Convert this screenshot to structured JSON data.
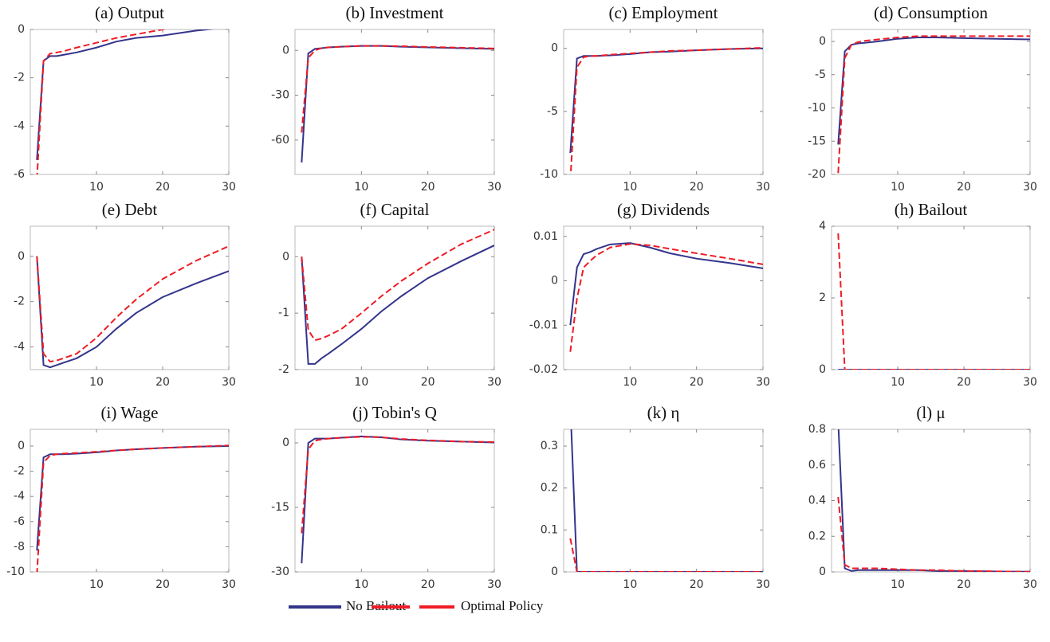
{
  "chart_data": [
    {
      "type": "line",
      "title": "(a) Output",
      "x": [
        1,
        2,
        3,
        4,
        5,
        7,
        10,
        13,
        16,
        20,
        25,
        30
      ],
      "xlim": [
        0,
        30
      ],
      "xticks": [
        10,
        20,
        30
      ],
      "ylim": [
        -6,
        0
      ],
      "yticks": [
        -6,
        -4,
        -2,
        0
      ],
      "series": [
        {
          "name": "No Bailout",
          "color": "#34348c",
          "values": [
            -5.4,
            -1.3,
            -1.1,
            -1.1,
            -1.05,
            -0.95,
            -0.75,
            -0.5,
            -0.35,
            -0.25,
            -0.05,
            0.1
          ]
        },
        {
          "name": "Optimal Policy",
          "color": "#ee1c25",
          "values": [
            -6.2,
            -1.3,
            -1.0,
            -0.95,
            -0.9,
            -0.75,
            -0.55,
            -0.35,
            -0.2,
            0.0,
            0.2,
            0.3
          ]
        }
      ]
    },
    {
      "type": "line",
      "title": "(b) Investment",
      "x": [
        1,
        2,
        3,
        4,
        5,
        7,
        10,
        13,
        16,
        20,
        25,
        30
      ],
      "xlim": [
        0,
        30
      ],
      "xticks": [
        10,
        20,
        30
      ],
      "ylim": [
        -83,
        14
      ],
      "yticks": [
        -60,
        -30,
        0
      ],
      "series": [
        {
          "name": "No Bailout",
          "color": "#34348c",
          "values": [
            -75,
            -2,
            1,
            1.5,
            2,
            2.5,
            3,
            3,
            2.5,
            2,
            1.5,
            1
          ]
        },
        {
          "name": "Optimal Policy",
          "color": "#ee1c25",
          "values": [
            -55,
            -5,
            0,
            1.5,
            2,
            2.5,
            3,
            3,
            2.8,
            2.3,
            1.8,
            1.3
          ]
        }
      ]
    },
    {
      "type": "line",
      "title": "(c) Employment",
      "x": [
        1,
        2,
        3,
        4,
        5,
        7,
        10,
        13,
        16,
        20,
        25,
        30
      ],
      "xlim": [
        0,
        30
      ],
      "xticks": [
        10,
        20,
        30
      ],
      "ylim": [
        -10,
        1.5
      ],
      "yticks": [
        -10,
        -5,
        0
      ],
      "series": [
        {
          "name": "No Bailout",
          "color": "#34348c",
          "values": [
            -8.3,
            -0.8,
            -0.6,
            -0.6,
            -0.6,
            -0.55,
            -0.45,
            -0.3,
            -0.25,
            -0.15,
            -0.05,
            0
          ]
        },
        {
          "name": "Optimal Policy",
          "color": "#ee1c25",
          "values": [
            -10.5,
            -1.5,
            -0.7,
            -0.6,
            -0.6,
            -0.5,
            -0.4,
            -0.3,
            -0.2,
            -0.15,
            -0.05,
            0.05
          ]
        }
      ]
    },
    {
      "type": "line",
      "title": "(d) Consumption",
      "x": [
        1,
        2,
        3,
        4,
        5,
        7,
        10,
        13,
        16,
        20,
        25,
        30
      ],
      "xlim": [
        0,
        30
      ],
      "xticks": [
        10,
        20,
        30
      ],
      "ylim": [
        -20,
        1.8
      ],
      "yticks": [
        -20,
        -15,
        -10,
        -5,
        0
      ],
      "series": [
        {
          "name": "No Bailout",
          "color": "#34348c",
          "values": [
            -15.5,
            -1.5,
            -0.5,
            -0.3,
            -0.2,
            0,
            0.4,
            0.6,
            0.6,
            0.5,
            0.4,
            0.3
          ]
        },
        {
          "name": "Optimal Policy",
          "color": "#ee1c25",
          "values": [
            -19.8,
            -2.5,
            -0.5,
            -0.1,
            0.1,
            0.3,
            0.6,
            0.8,
            0.8,
            0.8,
            0.8,
            0.8
          ]
        }
      ]
    },
    {
      "type": "line",
      "title": "(e) Debt",
      "x": [
        1,
        2,
        3,
        4,
        5,
        7,
        10,
        13,
        16,
        20,
        25,
        30
      ],
      "xlim": [
        0,
        30
      ],
      "xticks": [
        10,
        20,
        30
      ],
      "ylim": [
        -5,
        1.33
      ],
      "yticks": [
        -4,
        -2,
        0
      ],
      "series": [
        {
          "name": "No Bailout",
          "color": "#34348c",
          "values": [
            0,
            -4.8,
            -4.9,
            -4.8,
            -4.7,
            -4.5,
            -4.0,
            -3.2,
            -2.5,
            -1.8,
            -1.2,
            -0.65
          ]
        },
        {
          "name": "Optimal Policy",
          "color": "#ee1c25",
          "values": [
            0,
            -4.3,
            -4.65,
            -4.6,
            -4.5,
            -4.3,
            -3.6,
            -2.7,
            -1.9,
            -1.0,
            -0.2,
            0.45
          ]
        }
      ]
    },
    {
      "type": "line",
      "title": "(f) Capital",
      "x": [
        1,
        2,
        3,
        4,
        5,
        7,
        10,
        13,
        16,
        20,
        25,
        30
      ],
      "xlim": [
        0,
        30
      ],
      "xticks": [
        10,
        20,
        30
      ],
      "ylim": [
        -2,
        0.54
      ],
      "yticks": [
        -2,
        -1,
        0
      ],
      "series": [
        {
          "name": "No Bailout",
          "color": "#34348c",
          "values": [
            0,
            -1.9,
            -1.9,
            -1.8,
            -1.72,
            -1.55,
            -1.28,
            -0.97,
            -0.7,
            -0.38,
            -0.08,
            0.2
          ]
        },
        {
          "name": "Optimal Policy",
          "color": "#ee1c25",
          "values": [
            0,
            -1.3,
            -1.48,
            -1.45,
            -1.4,
            -1.28,
            -1.0,
            -0.7,
            -0.43,
            -0.12,
            0.22,
            0.48
          ]
        }
      ]
    },
    {
      "type": "line",
      "title": "(g) Dividends",
      "x": [
        1,
        2,
        3,
        4,
        5,
        7,
        10,
        13,
        16,
        20,
        25,
        30
      ],
      "xlim": [
        0,
        30
      ],
      "xticks": [
        10,
        20,
        30
      ],
      "ylim": [
        -0.02,
        0.0123
      ],
      "yticks": [
        -0.02,
        -0.01,
        0,
        0.01
      ],
      "series": [
        {
          "name": "No Bailout",
          "color": "#34348c",
          "values": [
            -0.01,
            0.003,
            0.006,
            0.0065,
            0.0072,
            0.0082,
            0.0085,
            0.0075,
            0.0062,
            0.005,
            0.004,
            0.0028
          ]
        },
        {
          "name": "Optimal Policy",
          "color": "#ee1c25",
          "values": [
            -0.016,
            -0.004,
            0.003,
            0.0045,
            0.0058,
            0.0075,
            0.0083,
            0.008,
            0.0072,
            0.0062,
            0.005,
            0.0037
          ]
        }
      ]
    },
    {
      "type": "line",
      "title": "(h) Bailout",
      "x": [
        1,
        2,
        3,
        4,
        5,
        7,
        10,
        13,
        16,
        20,
        25,
        30
      ],
      "xlim": [
        0,
        30
      ],
      "xticks": [
        10,
        20,
        30
      ],
      "ylim": [
        0,
        4
      ],
      "yticks": [
        0,
        2,
        4
      ],
      "series": [
        {
          "name": "No Bailout",
          "color": "#34348c",
          "values": [
            0,
            0,
            0,
            0,
            0,
            0,
            0,
            0,
            0,
            0,
            0,
            0
          ]
        },
        {
          "name": "Optimal Policy",
          "color": "#ee1c25",
          "values": [
            3.8,
            0,
            0,
            0,
            0,
            0,
            0,
            0,
            0,
            0,
            0,
            0
          ]
        }
      ]
    },
    {
      "type": "line",
      "title": "(i) Wage",
      "x": [
        1,
        2,
        3,
        4,
        5,
        7,
        10,
        13,
        16,
        20,
        25,
        30
      ],
      "xlim": [
        0,
        30
      ],
      "xticks": [
        10,
        20,
        30
      ],
      "ylim": [
        -10,
        1.33
      ],
      "yticks": [
        -10,
        -8,
        -6,
        -4,
        -2,
        0
      ],
      "series": [
        {
          "name": "No Bailout",
          "color": "#34348c",
          "values": [
            -8.3,
            -0.9,
            -0.65,
            -0.65,
            -0.65,
            -0.6,
            -0.5,
            -0.35,
            -0.25,
            -0.15,
            -0.05,
            0
          ]
        },
        {
          "name": "Optimal Policy",
          "color": "#ee1c25",
          "values": [
            -10.2,
            -1.3,
            -0.75,
            -0.65,
            -0.6,
            -0.55,
            -0.45,
            -0.35,
            -0.25,
            -0.15,
            -0.05,
            0.05
          ]
        }
      ]
    },
    {
      "type": "line",
      "title": "(j) Tobin's Q",
      "x": [
        1,
        2,
        3,
        4,
        5,
        7,
        10,
        13,
        16,
        20,
        25,
        30
      ],
      "xlim": [
        0,
        30
      ],
      "xticks": [
        10,
        20,
        30
      ],
      "ylim": [
        -30,
        3.15
      ],
      "yticks": [
        -30,
        -15,
        0
      ],
      "series": [
        {
          "name": "No Bailout",
          "color": "#34348c",
          "values": [
            -28,
            0,
            1,
            1,
            1,
            1.2,
            1.5,
            1.3,
            0.8,
            0.5,
            0.3,
            0.1
          ]
        },
        {
          "name": "Optimal Policy",
          "color": "#ee1c25",
          "values": [
            -21,
            -1.5,
            0.5,
            0.8,
            1,
            1.2,
            1.4,
            1.3,
            0.9,
            0.6,
            0.3,
            0.2
          ]
        }
      ]
    },
    {
      "type": "line",
      "title": "(k) η",
      "x": [
        1,
        2,
        3,
        4,
        5,
        7,
        10,
        13,
        16,
        20,
        25,
        30
      ],
      "xlim": [
        0,
        30
      ],
      "xticks": [
        10,
        20,
        30
      ],
      "ylim": [
        0,
        0.34
      ],
      "yticks": [
        0,
        0.1,
        0.2,
        0.3
      ],
      "series": [
        {
          "name": "No Bailout",
          "color": "#34348c",
          "values": [
            0.4,
            0,
            0,
            0,
            0,
            0,
            0,
            0,
            0,
            0,
            0,
            0
          ]
        },
        {
          "name": "Optimal Policy",
          "color": "#ee1c25",
          "values": [
            0.08,
            0,
            0,
            0,
            0,
            0,
            0,
            0,
            0,
            0,
            0,
            0
          ]
        }
      ]
    },
    {
      "type": "line",
      "title": "(l) μ",
      "x": [
        1,
        2,
        3,
        4,
        5,
        7,
        10,
        13,
        16,
        20,
        25,
        30
      ],
      "xlim": [
        0,
        30
      ],
      "xticks": [
        10,
        20,
        30
      ],
      "ylim": [
        0,
        0.8
      ],
      "yticks": [
        0,
        0.2,
        0.4,
        0.6,
        0.8
      ],
      "series": [
        {
          "name": "No Bailout",
          "color": "#34348c",
          "values": [
            0.85,
            0.02,
            0.005,
            0.01,
            0.01,
            0.01,
            0.01,
            0.01,
            0.005,
            0.005,
            0.002,
            0.001
          ]
        },
        {
          "name": "Optimal Policy",
          "color": "#ee1c25",
          "values": [
            0.42,
            0.04,
            0.02,
            0.02,
            0.02,
            0.02,
            0.015,
            0.01,
            0.01,
            0.005,
            0.003,
            0.001
          ]
        }
      ]
    }
  ]
}
